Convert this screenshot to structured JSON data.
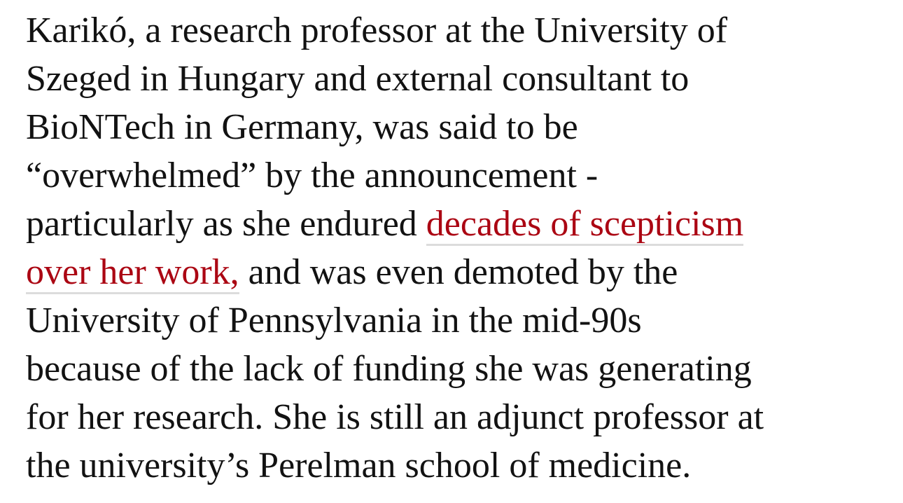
{
  "article": {
    "link_color": "#ab0613",
    "lines": [
      [
        {
          "text": "Karikó, a research professor at the University of"
        }
      ],
      [
        {
          "text": "Szeged in Hungary and external consultant to"
        }
      ],
      [
        {
          "text": "BioNTech in Germany, was said to be"
        }
      ],
      [
        {
          "text": "“overwhelmed” by the announcement -"
        }
      ],
      [
        {
          "text": "particularly as she endured "
        },
        {
          "text": "decades of scepticism",
          "link": true
        }
      ],
      [
        {
          "text": "over her work,",
          "link": true
        },
        {
          "text": " and was even demoted by the"
        }
      ],
      [
        {
          "text": "University of Pennsylvania in the mid-90s"
        }
      ],
      [
        {
          "text": "because of the lack of funding she was generating"
        }
      ],
      [
        {
          "text": "for her research. She is still an adjunct professor at"
        }
      ],
      [
        {
          "text": "the university’s Perelman school of medicine."
        }
      ]
    ]
  }
}
